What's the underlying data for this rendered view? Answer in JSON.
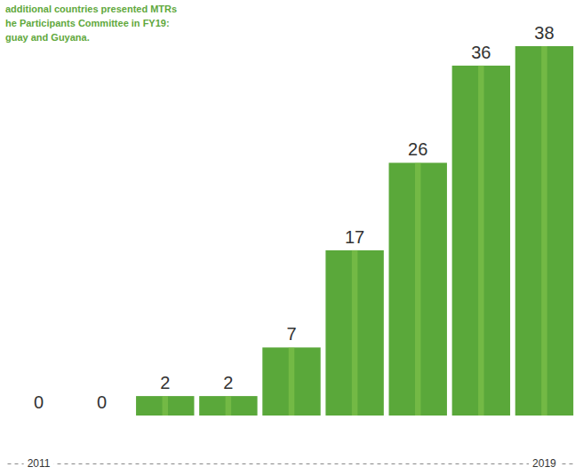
{
  "chart_data": {
    "type": "bar",
    "annotations": [
      "additional countries presented MTRs",
      "he Participants Committee in FY19:",
      "guay and Guyana."
    ],
    "categories": [
      "2011",
      null,
      null,
      null,
      null,
      null,
      null,
      null,
      "2019"
    ],
    "values": [
      0,
      0,
      2,
      2,
      7,
      17,
      26,
      36,
      38
    ],
    "color": "#5aa83a",
    "ylim": [
      0,
      38
    ],
    "data_labels": true,
    "tick_labels": "x",
    "grid": false
  }
}
